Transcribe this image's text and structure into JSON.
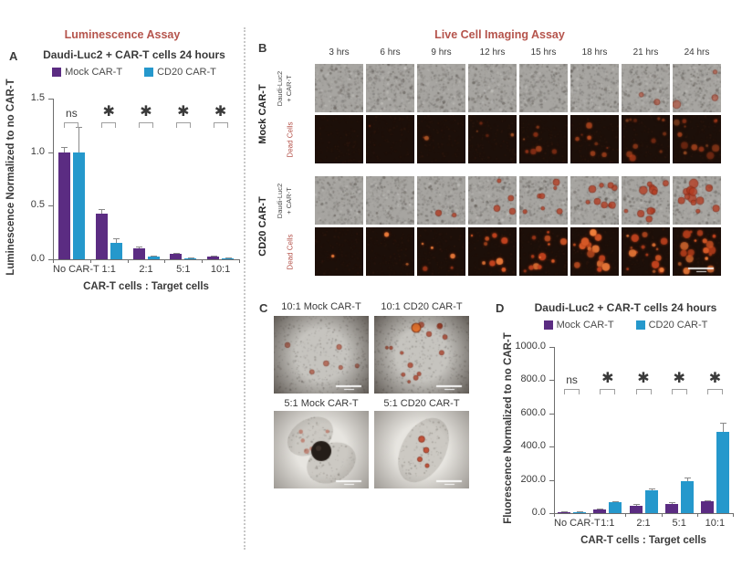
{
  "sections": {
    "luminescence": "Luminescence Assay",
    "imaging": "Live Cell Imaging Assay"
  },
  "colors": {
    "section_title": "#b5544c",
    "mock_series": "#5b2c82",
    "cd20_series": "#2598cc",
    "dead_cells_label": "#b5544c"
  },
  "panels": {
    "a": {
      "letter": "A",
      "title": "Daudi-Luc2 + CAR-T cells 24 hours"
    },
    "b": {
      "letter": "B",
      "timepoints": [
        "3 hrs",
        "6 hrs",
        "9 hrs",
        "12 hrs",
        "15 hrs",
        "18 hrs",
        "21 hrs",
        "24 hrs"
      ],
      "groups": [
        {
          "name": "Mock CAR-T",
          "row_labels": [
            [
              "Daudi-Luc2",
              "+ CAR-T"
            ],
            "Dead Cells"
          ]
        },
        {
          "name": "CD20 CAR-T",
          "row_labels": [
            [
              "Daudi-Luc2",
              "+ CAR-T"
            ],
            "Dead Cells"
          ]
        }
      ]
    },
    "c": {
      "letter": "C",
      "titles": [
        "10:1 Mock CAR-T",
        "10:1 CD20 CAR-T",
        "5:1 Mock CAR-T",
        "5:1 CD20 CAR-T"
      ]
    },
    "d": {
      "letter": "D",
      "title": "Daudi-Luc2 + CAR-T cells 24 hours"
    }
  },
  "chart_data": [
    {
      "type": "bar",
      "panel": "A",
      "title": "Daudi-Luc2 + CAR-T cells 24 hours",
      "categories": [
        "No CAR-T",
        "1:1",
        "2:1",
        "5:1",
        "10:1"
      ],
      "series": [
        {
          "name": "Mock CAR-T",
          "color": "#5b2c82",
          "values": [
            1.0,
            0.43,
            0.1,
            0.05,
            0.025
          ],
          "errors": [
            0.05,
            0.035,
            0.02,
            0.012,
            0.007
          ]
        },
        {
          "name": "CD20 CAR-T",
          "color": "#2598cc",
          "values": [
            1.0,
            0.15,
            0.025,
            0.012,
            0.008
          ],
          "errors": [
            0.24,
            0.045,
            0.012,
            0.006,
            0.004
          ]
        }
      ],
      "significance": [
        "ns",
        "✱",
        "✱",
        "✱",
        "✱"
      ],
      "ylabel": "Luminescence Normalized to no CAR-T",
      "xlabel": "CAR-T cells : Target cells",
      "ylim": [
        0,
        1.5
      ],
      "yticks": [
        0,
        0.5,
        1.0,
        1.5
      ],
      "ytick_labels": [
        "0.0",
        "0.5",
        "1.0",
        "1.5"
      ],
      "grid": false,
      "legend_position": "top"
    },
    {
      "type": "bar",
      "panel": "D",
      "title": "Daudi-Luc2 + CAR-T cells 24 hours",
      "categories": [
        "No CAR-T",
        "1:1",
        "2:1",
        "5:1",
        "10:1"
      ],
      "series": [
        {
          "name": "Mock CAR-T",
          "color": "#5b2c82",
          "values": [
            2,
            22,
            45,
            55,
            70
          ],
          "errors": [
            1,
            4,
            8,
            10,
            8
          ]
        },
        {
          "name": "CD20 CAR-T",
          "color": "#2598cc",
          "values": [
            8,
            65,
            140,
            190,
            490
          ],
          "errors": [
            4,
            6,
            7,
            25,
            55
          ]
        }
      ],
      "significance": [
        "ns",
        "✱",
        "✱",
        "✱",
        "✱"
      ],
      "ylabel": "Fluorescence Normalized to no CAR-T",
      "xlabel": "CAR-T cells : Target cells",
      "ylim": [
        0,
        1000
      ],
      "yticks": [
        0,
        200,
        400,
        600,
        800,
        1000
      ],
      "ytick_labels": [
        "0.0",
        "200.0",
        "400.0",
        "600.0",
        "800.0",
        "1000.0"
      ],
      "grid": false,
      "legend_position": "top"
    }
  ]
}
